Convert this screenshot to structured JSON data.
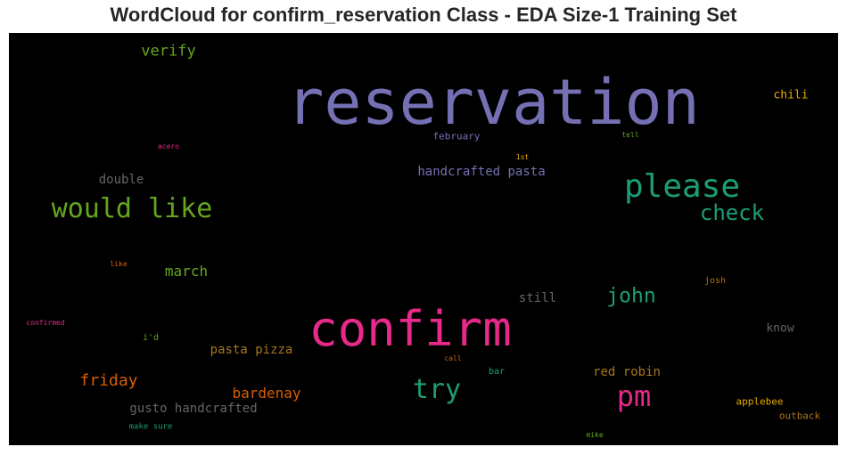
{
  "chart_data": {
    "type": "wordcloud",
    "title": "WordCloud for confirm_reservation Class - EDA Size-1 Training Set",
    "background": "#000000",
    "words": [
      {
        "text": "reservation",
        "color": "#7570b3"
      },
      {
        "text": "confirm",
        "color": "#e7298a"
      },
      {
        "text": "please",
        "color": "#1b9e77"
      },
      {
        "text": "would like",
        "color": "#66a61e"
      },
      {
        "text": "check",
        "color": "#1b9e77"
      },
      {
        "text": "pm",
        "color": "#e7298a"
      },
      {
        "text": "try",
        "color": "#1b9e77"
      },
      {
        "text": "john",
        "color": "#1b9e77"
      },
      {
        "text": "verify",
        "color": "#66a61e"
      },
      {
        "text": "friday",
        "color": "#d95f02"
      },
      {
        "text": "march",
        "color": "#66a61e"
      },
      {
        "text": "bardenay",
        "color": "#d95f02"
      },
      {
        "text": "handcrafted pasta",
        "color": "#7570b3"
      },
      {
        "text": "gusto handcrafted",
        "color": "#666666"
      },
      {
        "text": "double",
        "color": "#666666"
      },
      {
        "text": "pasta pizza",
        "color": "#a6761d"
      },
      {
        "text": "red robin",
        "color": "#a6761d"
      },
      {
        "text": "still",
        "color": "#666666"
      },
      {
        "text": "know",
        "color": "#666666"
      },
      {
        "text": "chili",
        "color": "#e6ab02"
      },
      {
        "text": "february",
        "color": "#7570b3"
      },
      {
        "text": "josh",
        "color": "#a6761d"
      },
      {
        "text": "applebee",
        "color": "#e6ab02"
      },
      {
        "text": "outback",
        "color": "#a6761d"
      },
      {
        "text": "i'd",
        "color": "#66a61e"
      },
      {
        "text": "bar",
        "color": "#1b9e77"
      },
      {
        "text": "call",
        "color": "#d95f02"
      },
      {
        "text": "1st",
        "color": "#e6ab02"
      },
      {
        "text": "tell",
        "color": "#66a61e"
      },
      {
        "text": "acero",
        "color": "#e7298a"
      },
      {
        "text": "like",
        "color": "#d95f02"
      },
      {
        "text": "confirmed",
        "color": "#e7298a"
      },
      {
        "text": "make sure",
        "color": "#1b9e77"
      },
      {
        "text": "mike",
        "color": "#66a61e"
      }
    ]
  }
}
